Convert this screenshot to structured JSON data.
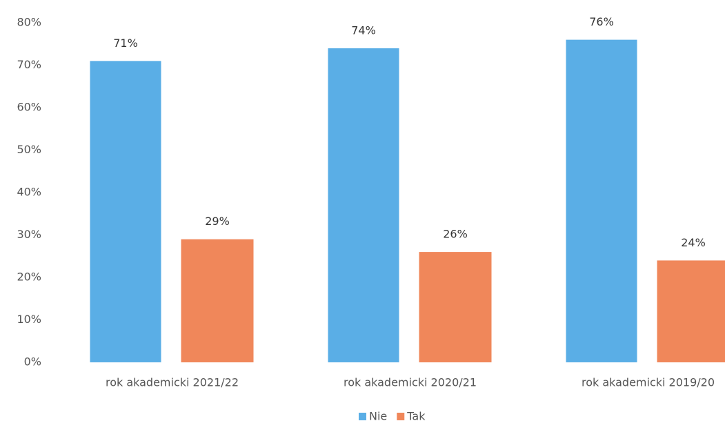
{
  "chart_data": {
    "type": "bar",
    "categories": [
      "rok akademicki 2021/22",
      "rok akademicki 2020/21",
      "rok akademicki 2019/20"
    ],
    "series": [
      {
        "name": "Nie",
        "color": "#5aaee6",
        "values": [
          71,
          74,
          76
        ],
        "value_labels": [
          "71%",
          "74%",
          "76%"
        ]
      },
      {
        "name": "Tak",
        "color": "#f0875a",
        "values": [
          29,
          26,
          24
        ],
        "value_labels": [
          "29%",
          "26%",
          "24%"
        ]
      }
    ],
    "ylim": [
      0,
      80
    ],
    "yticks": [
      {
        "value": 0,
        "label": "0%"
      },
      {
        "value": 10,
        "label": "10%"
      },
      {
        "value": 20,
        "label": "20%"
      },
      {
        "value": 30,
        "label": "30%"
      },
      {
        "value": 40,
        "label": "40%"
      },
      {
        "value": 50,
        "label": "50%"
      },
      {
        "value": 60,
        "label": "60%"
      },
      {
        "value": 70,
        "label": "70%"
      },
      {
        "value": 80,
        "label": "80%"
      }
    ],
    "grid": false,
    "legend": "bottom"
  }
}
